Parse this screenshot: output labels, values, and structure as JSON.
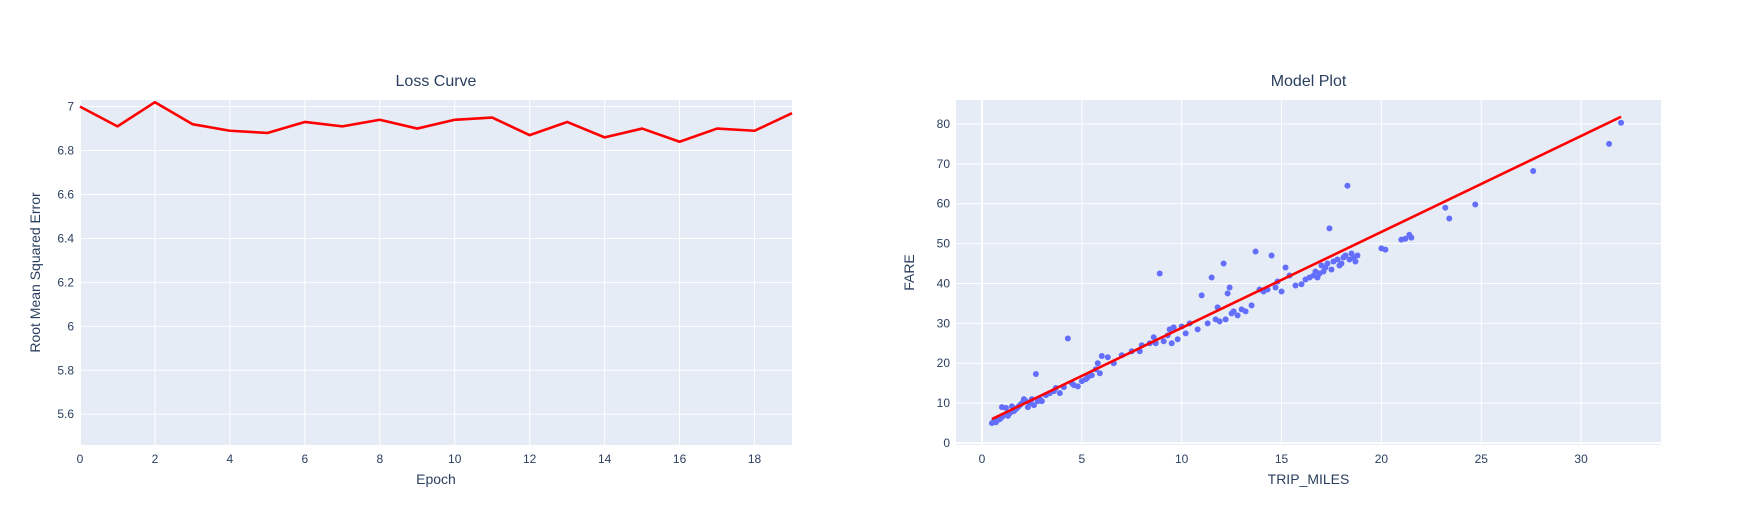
{
  "colors": {
    "plot_background": "#e5ecf6",
    "grid": "#ffffff",
    "text": "#2a3f5f",
    "line": "#ff0000",
    "markers": "#636efa"
  },
  "chart_data": [
    {
      "type": "line",
      "title": "Loss Curve",
      "xlabel": "Epoch",
      "ylabel": "Root Mean Squared Error",
      "xlim": [
        0,
        19
      ],
      "ylim": [
        5.46,
        7.03
      ],
      "grid": true,
      "legend": "none",
      "x_ticks": [
        0,
        2,
        4,
        6,
        8,
        10,
        12,
        14,
        16,
        18
      ],
      "y_ticks": [
        5.6,
        5.8,
        6,
        6.2,
        6.4,
        6.6,
        6.8,
        7
      ],
      "x_tick_labels": [
        "0",
        "2",
        "4",
        "6",
        "8",
        "10",
        "12",
        "14",
        "16",
        "18"
      ],
      "y_tick_labels": [
        "5.6",
        "5.8",
        "6",
        "6.2",
        "6.4",
        "6.6",
        "6.8",
        "7"
      ],
      "x": [
        0,
        1,
        2,
        3,
        4,
        5,
        6,
        7,
        8,
        9,
        10,
        11,
        12,
        13,
        14,
        15,
        16,
        17,
        18,
        19
      ],
      "series": [
        {
          "name": "",
          "color": "#ff0000",
          "values": [
            7.0,
            6.91,
            7.02,
            6.92,
            6.89,
            6.88,
            6.93,
            6.91,
            6.94,
            6.9,
            6.94,
            6.95,
            6.87,
            6.93,
            6.86,
            6.9,
            6.84,
            6.9,
            6.89,
            6.97
          ]
        }
      ]
    },
    {
      "type": "scatter",
      "title": "Model Plot",
      "xlabel": "TRIP_MILES",
      "ylabel": "FARE",
      "xlim": [
        -1.3,
        34
      ],
      "ylim": [
        -0.5,
        86
      ],
      "grid": true,
      "legend": "none",
      "x_ticks": [
        0,
        5,
        10,
        15,
        20,
        25,
        30
      ],
      "y_ticks": [
        0,
        10,
        20,
        30,
        40,
        50,
        60,
        70,
        80
      ],
      "x_tick_labels": [
        "0",
        "5",
        "10",
        "15",
        "20",
        "25",
        "30"
      ],
      "y_tick_labels": [
        "0",
        "10",
        "20",
        "30",
        "40",
        "50",
        "60",
        "70",
        "80"
      ],
      "points": [
        [
          0.5,
          5.0
        ],
        [
          0.6,
          5.5
        ],
        [
          0.7,
          5.2
        ],
        [
          0.8,
          5.8
        ],
        [
          0.9,
          6.0
        ],
        [
          1.0,
          6.5
        ],
        [
          1.1,
          7.0
        ],
        [
          1.0,
          9.0
        ],
        [
          1.2,
          8.8
        ],
        [
          1.3,
          6.8
        ],
        [
          1.4,
          7.5
        ],
        [
          1.5,
          9.2
        ],
        [
          1.6,
          8.0
        ],
        [
          1.7,
          8.5
        ],
        [
          1.8,
          9.0
        ],
        [
          1.9,
          9.5
        ],
        [
          2.0,
          10.0
        ],
        [
          2.1,
          11.0
        ],
        [
          2.2,
          10.5
        ],
        [
          2.3,
          9.0
        ],
        [
          2.4,
          10.0
        ],
        [
          2.5,
          11.0
        ],
        [
          2.6,
          9.5
        ],
        [
          2.7,
          17.3
        ],
        [
          2.8,
          10.5
        ],
        [
          2.9,
          11.0
        ],
        [
          3.0,
          10.5
        ],
        [
          3.2,
          12.0
        ],
        [
          3.4,
          12.5
        ],
        [
          3.6,
          13.0
        ],
        [
          3.7,
          13.8
        ],
        [
          3.9,
          12.5
        ],
        [
          4.1,
          14.0
        ],
        [
          4.3,
          26.2
        ],
        [
          4.5,
          15.0
        ],
        [
          4.6,
          14.5
        ],
        [
          4.8,
          14.2
        ],
        [
          5.0,
          15.5
        ],
        [
          5.2,
          16.0
        ],
        [
          5.3,
          16.5
        ],
        [
          5.5,
          17.0
        ],
        [
          5.7,
          18.5
        ],
        [
          5.8,
          20.0
        ],
        [
          5.9,
          17.5
        ],
        [
          6.0,
          21.8
        ],
        [
          6.3,
          21.5
        ],
        [
          6.6,
          20.0
        ],
        [
          7.0,
          22.0
        ],
        [
          7.5,
          23.0
        ],
        [
          7.9,
          23.0
        ],
        [
          8.0,
          24.5
        ],
        [
          8.4,
          25.0
        ],
        [
          8.6,
          26.5
        ],
        [
          8.7,
          25.0
        ],
        [
          8.9,
          42.5
        ],
        [
          9.1,
          25.5
        ],
        [
          9.3,
          27.0
        ],
        [
          9.4,
          28.5
        ],
        [
          9.5,
          25.0
        ],
        [
          9.6,
          29.0
        ],
        [
          9.8,
          26.0
        ],
        [
          10.0,
          29.2
        ],
        [
          10.2,
          27.5
        ],
        [
          10.4,
          30.0
        ],
        [
          10.8,
          28.5
        ],
        [
          11.0,
          37.0
        ],
        [
          11.3,
          30.0
        ],
        [
          11.5,
          41.5
        ],
        [
          11.7,
          31.0
        ],
        [
          11.8,
          34.0
        ],
        [
          11.9,
          30.5
        ],
        [
          12.1,
          45.0
        ],
        [
          12.2,
          31.0
        ],
        [
          12.3,
          37.5
        ],
        [
          12.4,
          39.0
        ],
        [
          12.5,
          32.5
        ],
        [
          12.6,
          33.0
        ],
        [
          12.8,
          32.0
        ],
        [
          13.0,
          33.5
        ],
        [
          13.2,
          33.0
        ],
        [
          13.5,
          34.5
        ],
        [
          13.7,
          48.0
        ],
        [
          13.9,
          38.5
        ],
        [
          14.1,
          38.0
        ],
        [
          14.3,
          38.5
        ],
        [
          14.5,
          47.0
        ],
        [
          14.7,
          39.0
        ],
        [
          14.8,
          40.5
        ],
        [
          15.0,
          38.0
        ],
        [
          15.2,
          44.0
        ],
        [
          15.4,
          42.0
        ],
        [
          15.7,
          39.5
        ],
        [
          16.0,
          39.8
        ],
        [
          16.2,
          41.0
        ],
        [
          16.4,
          41.5
        ],
        [
          16.6,
          42.0
        ],
        [
          16.7,
          43.0
        ],
        [
          16.8,
          41.5
        ],
        [
          16.9,
          42.5
        ],
        [
          17.0,
          44.5
        ],
        [
          17.1,
          43.0
        ],
        [
          17.2,
          44.0
        ],
        [
          17.3,
          45.0
        ],
        [
          17.4,
          53.8
        ],
        [
          17.5,
          43.5
        ],
        [
          17.6,
          45.5
        ],
        [
          17.8,
          46.0
        ],
        [
          17.9,
          44.5
        ],
        [
          18.0,
          45.0
        ],
        [
          18.1,
          46.5
        ],
        [
          18.2,
          47.0
        ],
        [
          18.3,
          64.5
        ],
        [
          18.4,
          46.0
        ],
        [
          18.5,
          47.5
        ],
        [
          18.6,
          46.5
        ],
        [
          18.7,
          45.5
        ],
        [
          18.8,
          47.0
        ],
        [
          20.0,
          48.8
        ],
        [
          20.2,
          48.5
        ],
        [
          21.0,
          51.0
        ],
        [
          21.2,
          51.2
        ],
        [
          21.4,
          52.2
        ],
        [
          21.5,
          51.5
        ],
        [
          23.2,
          59.0
        ],
        [
          23.4,
          56.3
        ],
        [
          24.7,
          59.8
        ],
        [
          27.6,
          68.2
        ],
        [
          31.4,
          75.0
        ],
        [
          32.0,
          80.3
        ]
      ],
      "series": [
        {
          "name": "",
          "type": "line",
          "color": "#ff0000",
          "x": [
            0.5,
            32.0
          ],
          "values": [
            6.0,
            81.8
          ]
        }
      ]
    }
  ]
}
